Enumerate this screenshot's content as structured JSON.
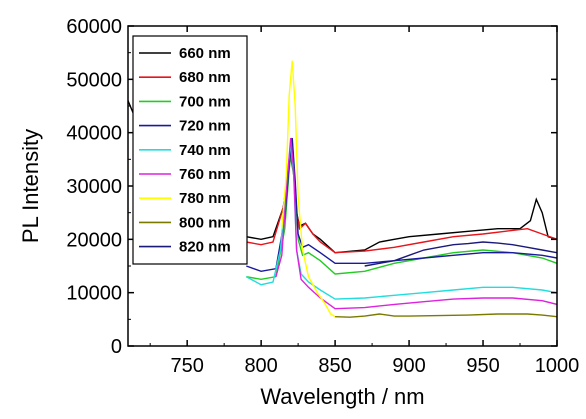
{
  "chart_data": {
    "type": "line",
    "title": "",
    "xlabel": "Wavelength / nm",
    "ylabel": "PL Intensity",
    "xlim": [
      710,
      1000
    ],
    "ylim": [
      0,
      60000
    ],
    "x_ticks": [
      750,
      800,
      850,
      900,
      950,
      1000
    ],
    "y_ticks": [
      0,
      10000,
      20000,
      30000,
      40000,
      50000,
      60000
    ],
    "grid": false,
    "legend_position": "top-left",
    "series": [
      {
        "name": "660 nm",
        "color": "#000000",
        "x": [
          710,
          716,
          720,
          790,
          800,
          808,
          815,
          818,
          820,
          822,
          824,
          826,
          830,
          835,
          840,
          850,
          870,
          880,
          890,
          900,
          920,
          940,
          960,
          975,
          982,
          986,
          990,
          994,
          1000
        ],
        "y": [
          46000,
          42000,
          36000,
          20500,
          20000,
          20500,
          26000,
          32000,
          36500,
          33000,
          25000,
          22500,
          23000,
          21000,
          20000,
          17500,
          18000,
          19500,
          20000,
          20500,
          21000,
          21500,
          22000,
          22000,
          23500,
          27500,
          25000,
          20500,
          20000
        ]
      },
      {
        "name": "680 nm",
        "color": "#e8141b",
        "x": [
          790,
          800,
          808,
          815,
          818,
          820,
          822,
          824,
          826,
          830,
          835,
          840,
          850,
          870,
          890,
          910,
          930,
          950,
          965,
          980,
          990,
          1000
        ],
        "y": [
          19500,
          19000,
          19500,
          26000,
          32000,
          35500,
          32000,
          25000,
          22000,
          23000,
          21000,
          19500,
          17500,
          17800,
          18500,
          19500,
          20500,
          21000,
          21500,
          22000,
          21000,
          20000
        ]
      },
      {
        "name": "700 nm",
        "color": "#22cc22",
        "x": [
          790,
          800,
          810,
          816,
          819,
          821,
          823,
          825,
          828,
          832,
          840,
          850,
          870,
          890,
          910,
          930,
          950,
          970,
          990,
          1000
        ],
        "y": [
          13000,
          12500,
          13000,
          22000,
          33000,
          38500,
          30000,
          20000,
          17000,
          17500,
          16000,
          13500,
          14000,
          15500,
          16500,
          17500,
          18000,
          17500,
          16500,
          15500
        ]
      },
      {
        "name": "720 nm",
        "color": "#1a1a9c",
        "x": [
          790,
          800,
          810,
          816,
          819,
          821,
          823,
          825,
          828,
          832,
          840,
          850,
          870,
          890,
          910,
          930,
          950,
          970,
          990,
          1000
        ],
        "y": [
          15000,
          14000,
          14500,
          24000,
          34000,
          39000,
          31000,
          21000,
          18500,
          19000,
          17500,
          15500,
          15500,
          16000,
          16500,
          17000,
          17500,
          17500,
          17000,
          16500
        ]
      },
      {
        "name": "740 nm",
        "color": "#22dddd",
        "x": [
          790,
          800,
          808,
          813,
          817,
          820,
          822,
          824,
          827,
          832,
          840,
          850,
          870,
          890,
          910,
          930,
          950,
          970,
          990,
          1000
        ],
        "y": [
          13000,
          11500,
          12000,
          18000,
          30000,
          38000,
          32000,
          18000,
          13500,
          12000,
          10500,
          8800,
          9000,
          9500,
          10000,
          10500,
          11000,
          11000,
          10500,
          10000
        ]
      },
      {
        "name": "760 nm",
        "color": "#dd22dd",
        "x": [
          810,
          814,
          817,
          820,
          822,
          824,
          827,
          832,
          840,
          850,
          870,
          890,
          910,
          930,
          950,
          970,
          990,
          1000
        ],
        "y": [
          13000,
          17000,
          29000,
          39000,
          33000,
          18000,
          12500,
          11000,
          9000,
          7000,
          7200,
          7800,
          8300,
          8800,
          9000,
          9000,
          8500,
          7800
        ]
      },
      {
        "name": "780 nm",
        "color": "#ffff00",
        "x": [
          814,
          817,
          819,
          821,
          823,
          825,
          828,
          832,
          838,
          843,
          847,
          850
        ],
        "y": [
          22000,
          32000,
          47000,
          53500,
          45000,
          28000,
          18000,
          13000,
          10000,
          8000,
          6000,
          5500
        ]
      },
      {
        "name": "800 nm",
        "color": "#7a7a00",
        "x": [
          850,
          860,
          870,
          880,
          890,
          900,
          920,
          940,
          960,
          980,
          990,
          1000
        ],
        "y": [
          5500,
          5400,
          5600,
          6000,
          5600,
          5600,
          5700,
          5800,
          6000,
          6000,
          5800,
          5500
        ]
      },
      {
        "name": "820 nm",
        "color": "#1a1a7a",
        "x": [
          870,
          880,
          890,
          900,
          910,
          920,
          930,
          940,
          950,
          960,
          970,
          980,
          990,
          1000
        ],
        "y": [
          15000,
          15500,
          16000,
          17000,
          18000,
          18500,
          19000,
          19200,
          19500,
          19300,
          19000,
          18500,
          18000,
          17500
        ]
      }
    ]
  }
}
